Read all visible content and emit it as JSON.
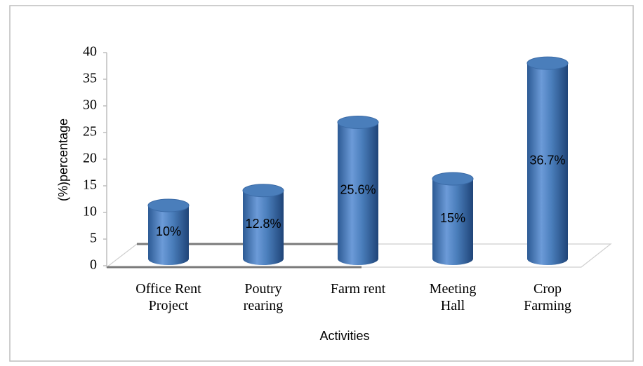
{
  "chart_data": {
    "type": "bar",
    "categories": [
      "Office Rent Project",
      "Poutry rearing",
      "Farm rent",
      "Meeting Hall",
      "Crop Farming"
    ],
    "values": [
      10,
      12.8,
      25.6,
      15,
      36.7
    ],
    "value_labels": [
      "10%",
      "12.8%",
      "25.6%",
      "15%",
      "36.7%"
    ],
    "color": "#4a7ebb",
    "ylim": [
      0,
      40
    ],
    "yticks": [
      0,
      5,
      10,
      15,
      20,
      25,
      30,
      35,
      40
    ],
    "y_label": "(%)percentage",
    "x_label": "Activities"
  }
}
